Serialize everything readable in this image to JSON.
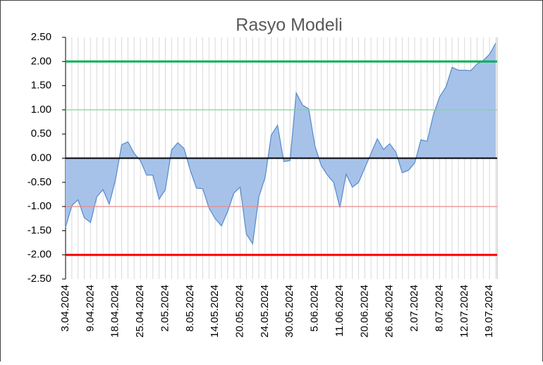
{
  "chart_data": {
    "type": "area",
    "title": "Rasyo Modeli",
    "categories": [
      "3.04.2024",
      null,
      null,
      null,
      "9.04.2024",
      null,
      null,
      null,
      "18.04.2024",
      null,
      null,
      null,
      "25.04.2024",
      null,
      null,
      null,
      "2.05.2024",
      null,
      null,
      null,
      "8.05.2024",
      null,
      null,
      null,
      "14.05.2024",
      null,
      null,
      null,
      "20.05.2024",
      null,
      null,
      null,
      "24.05.2024",
      null,
      null,
      null,
      "30.05.2024",
      null,
      null,
      null,
      "5.06.2024",
      null,
      null,
      null,
      "11.06.2024",
      null,
      null,
      null,
      "20.06.2024",
      null,
      null,
      null,
      "26.06.2024",
      null,
      null,
      null,
      "2.07.2024",
      null,
      null,
      null,
      "8.07.2024",
      null,
      null,
      null,
      "12.07.2024",
      null,
      null,
      null,
      "19.07.2024",
      null
    ],
    "values": [
      -1.43,
      -0.98,
      -0.86,
      -1.23,
      -1.33,
      -0.8,
      -0.65,
      -0.95,
      -0.45,
      0.28,
      0.34,
      0.1,
      -0.05,
      -0.35,
      -0.35,
      -0.85,
      -0.65,
      0.17,
      0.32,
      0.2,
      -0.25,
      -0.62,
      -0.63,
      -1.03,
      -1.25,
      -1.4,
      -1.1,
      -0.72,
      -0.6,
      -1.57,
      -1.77,
      -0.8,
      -0.4,
      0.48,
      0.68,
      -0.07,
      -0.05,
      1.35,
      1.1,
      1.02,
      0.25,
      -0.15,
      -0.35,
      -0.5,
      -1.02,
      -0.33,
      -0.6,
      -0.5,
      -0.2,
      0.1,
      0.4,
      0.18,
      0.3,
      0.12,
      -0.3,
      -0.25,
      -0.1,
      0.38,
      0.35,
      0.9,
      1.27,
      1.47,
      1.88,
      1.82,
      1.82,
      1.81,
      1.95,
      2.02,
      2.15,
      2.38
    ],
    "color": "#a7c2e8",
    "line_color": "#5b8fcf",
    "ylim": [
      -2.5,
      2.5
    ],
    "yticks": [
      {
        "value": -2.5,
        "label": "-2.50"
      },
      {
        "value": -2,
        "label": "-2.00"
      },
      {
        "value": -1.5,
        "label": "-1.50"
      },
      {
        "value": -1,
        "label": "-1.00"
      },
      {
        "value": -0.5,
        "label": "-0.50"
      },
      {
        "value": 0,
        "label": "0.00"
      },
      {
        "value": 0.5,
        "label": "0.50"
      },
      {
        "value": 1,
        "label": "1.00"
      },
      {
        "value": 1.5,
        "label": "1.50"
      },
      {
        "value": 2,
        "label": "2.00"
      },
      {
        "value": 2.5,
        "label": "2.50"
      }
    ],
    "reference_lines": [
      {
        "value": 2,
        "color": "#00b050",
        "width": 3
      },
      {
        "value": 1,
        "color": "#7fd59a",
        "width": 1.2
      },
      {
        "value": 0,
        "color": "#000000",
        "width": 2
      },
      {
        "value": -1,
        "color": "#e88a8a",
        "width": 1.2
      },
      {
        "value": -2,
        "color": "#ff0000",
        "width": 3
      }
    ],
    "grid": true
  }
}
